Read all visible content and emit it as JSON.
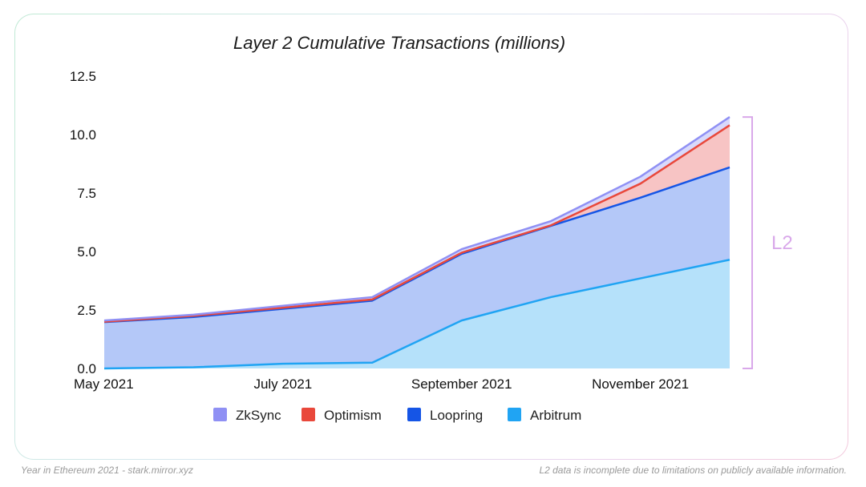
{
  "chart_data": {
    "type": "area",
    "stacked": true,
    "title": "Layer 2 Cumulative Transactions (millions)",
    "x": [
      0,
      1,
      2,
      3,
      4,
      5,
      6,
      7
    ],
    "xticks": [
      {
        "x": 0,
        "label": "May 2021"
      },
      {
        "x": 2,
        "label": "July 2021"
      },
      {
        "x": 4,
        "label": "September 2021"
      },
      {
        "x": 6,
        "label": "November 2021"
      }
    ],
    "ylim": [
      0,
      12.5
    ],
    "yticks": [
      "0.0",
      "2.5",
      "5.0",
      "7.5",
      "10.0",
      "12.5"
    ],
    "series": [
      {
        "name": "Arbitrum",
        "color": "#20a4f3",
        "fill": "#b5e1fa",
        "values": [
          0.0,
          0.05,
          0.2,
          0.25,
          2.05,
          3.05,
          3.85,
          4.65
        ]
      },
      {
        "name": "Loopring",
        "color": "#1555e6",
        "fill": "#b4c8f8",
        "values": [
          1.98,
          2.15,
          2.35,
          2.65,
          2.85,
          3.05,
          3.45,
          3.95
        ]
      },
      {
        "name": "Optimism",
        "color": "#e9483b",
        "fill": "#f7c4c4",
        "values": [
          0.02,
          0.05,
          0.05,
          0.05,
          0.05,
          0.02,
          0.6,
          1.8
        ]
      },
      {
        "name": "ZkSync",
        "color": "#8f90f4",
        "fill": "#d8d9fb",
        "values": [
          0.05,
          0.05,
          0.08,
          0.1,
          0.15,
          0.18,
          0.3,
          0.35
        ]
      }
    ],
    "legend": [
      "ZkSync",
      "Optimism",
      "Loopring",
      "Arbitrum"
    ],
    "legend_position": "bottom",
    "annotation": {
      "label": "L2",
      "color": "#d9a8ea"
    }
  },
  "footer": {
    "left": "Year in Ethereum 2021 - stark.mirror.xyz",
    "right": "L2 data is incomplete due to limitations on publicly available information."
  }
}
